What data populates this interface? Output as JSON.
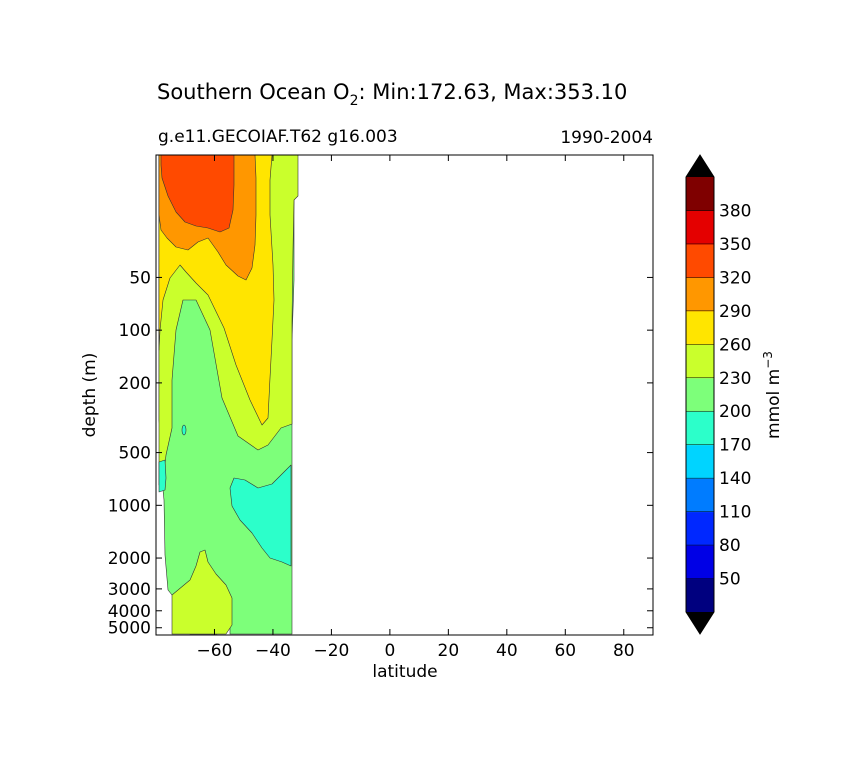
{
  "chart_data": {
    "type": "contourf",
    "title": {
      "prefix": "Southern Ocean O",
      "subscript": "2",
      "suffix": ": Min:172.63, Max:353.10"
    },
    "subtitle_left": "g.e11.GECOIAF.T62 g16.003",
    "subtitle_right": "1990-2004",
    "xlabel": "latitude",
    "ylabel": "depth (m)",
    "xlim": [
      -80,
      90
    ],
    "ylim": [
      10,
      5500
    ],
    "yscale": "log (depth, inverted)",
    "x_ticks": [
      -60,
      -40,
      -20,
      0,
      20,
      40,
      60,
      80
    ],
    "x_tick_labels": [
      "−60",
      "−40",
      "−20",
      "0",
      "20",
      "40",
      "60",
      "80"
    ],
    "y_ticks": [
      50,
      100,
      200,
      500,
      1000,
      2000,
      3000,
      4000,
      5000
    ],
    "y_tick_labels": [
      "50",
      "100",
      "200",
      "500",
      "1000",
      "2000",
      "3000",
      "4000",
      "5000"
    ],
    "colorbar": {
      "label_prefix": "mmol m",
      "label_exponent": "−3",
      "levels": [
        20,
        50,
        80,
        110,
        140,
        170,
        200,
        230,
        260,
        290,
        320,
        350,
        380,
        410
      ],
      "tick_labels": [
        "50",
        "80",
        "110",
        "140",
        "170",
        "200",
        "230",
        "260",
        "290",
        "320",
        "350",
        "380"
      ],
      "colors": [
        "#00007f",
        "#0000e6",
        "#0028ff",
        "#007cff",
        "#00d4ff",
        "#2cffca",
        "#7dff7a",
        "#caff2c",
        "#ffe500",
        "#ff9700",
        "#ff4a00",
        "#e40000",
        "#7f0000"
      ],
      "extend": "both",
      "extend_color": "#000000"
    },
    "data_extent": {
      "lat_min": -79,
      "lat_max": -33,
      "note": "data present only in Southern Ocean (south of ~33°S)"
    },
    "regions": [
      {
        "name": "surface-maximum",
        "value_range": [
          320,
          350
        ],
        "lat_range": [
          -79,
          -58
        ],
        "depth_range": [
          10,
          75
        ]
      },
      {
        "name": "upper-290-320",
        "value_range": [
          290,
          320
        ],
        "lat_range": [
          -77,
          -45
        ],
        "depth_range": [
          10,
          150
        ]
      },
      {
        "name": "upper-260-290",
        "value_range": [
          260,
          290
        ],
        "lat_range": [
          -79,
          -40
        ],
        "depth_range": [
          10,
          800
        ]
      },
      {
        "name": "upper-230-260",
        "value_range": [
          230,
          260
        ],
        "lat_range": [
          -79,
          -33
        ],
        "depth_range": [
          10,
          800
        ]
      },
      {
        "name": "interior-200-230",
        "value_range": [
          200,
          230
        ],
        "lat_range": [
          -78,
          -33
        ],
        "depth_range": [
          130,
          5400
        ]
      },
      {
        "name": "deep-minimum",
        "value_range": [
          170,
          200
        ],
        "lat_range": [
          -52,
          -34
        ],
        "depth_range": [
          1200,
          3200
        ]
      },
      {
        "name": "abyssal-230-260",
        "value_range": [
          230,
          260
        ],
        "lat_range": [
          -73,
          -58
        ],
        "depth_range": [
          3000,
          5400
        ]
      }
    ]
  }
}
